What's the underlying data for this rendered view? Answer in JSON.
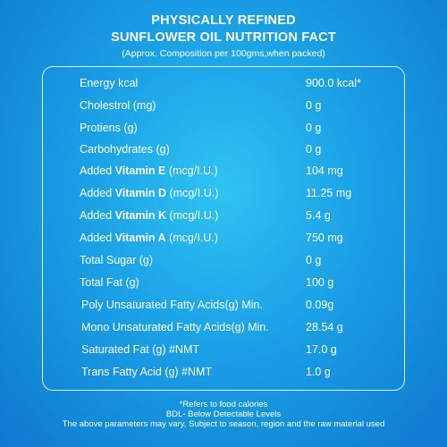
{
  "header": {
    "title_line1": "PHYSICALLY REFINED",
    "title_line2": "SUNFLOWER OIL NUTRITION FACT",
    "subtitle": "(Approx.  Composition per 100gms,when packed)"
  },
  "rows": [
    {
      "label": "Energy kcal",
      "value": "900.0 kcal*"
    },
    {
      "label": "Cholestrol (mg)",
      "value": "0 g"
    },
    {
      "label": "Protiens (g)",
      "value": "0 g"
    },
    {
      "label": "Carbohydrates (g)",
      "value": "0 g"
    },
    {
      "label_pre": "Added ",
      "label_bold": "Vitamin E",
      "label_post": " (mcg/I.U.)",
      "value": "104 mg"
    },
    {
      "label_pre": "Added ",
      "label_bold": "Vitamin D",
      "label_post": " (mcg/I.U.)",
      "value": "11.25 mg"
    },
    {
      "label_pre": "Added ",
      "label_bold": "Vitamin K",
      "label_post": " (mcg/I.U.)",
      "value": "5.4 g"
    },
    {
      "label_pre": "Added ",
      "label_bold": "Vitamin A",
      "label_post": " (mcg/I.U.)",
      "value": "750 mg"
    },
    {
      "label": "Total Sugar (g)",
      "value": "0 g"
    },
    {
      "label": "Total Fat (g)",
      "value": "100 g"
    },
    {
      "label": "Poly Unsaturated Fatty Acids(g) Min.",
      "value": "0.09g"
    },
    {
      "label": "Mono Unsaturated Fatty Acids(g) Min.",
      "value": "28.54 g"
    },
    {
      "label": "Saturated Fat (g) #NMT",
      "value": "17.0 g"
    },
    {
      "label": "Trans Fatty Acid (g) #NMT",
      "value": "1.0 g"
    }
  ],
  "footer": {
    "line1": "*Refers to food calories",
    "line2": "BDL- Below Detectable Levels",
    "line3": "The above parameters may vary, Subject to season, region and the raw material used"
  }
}
